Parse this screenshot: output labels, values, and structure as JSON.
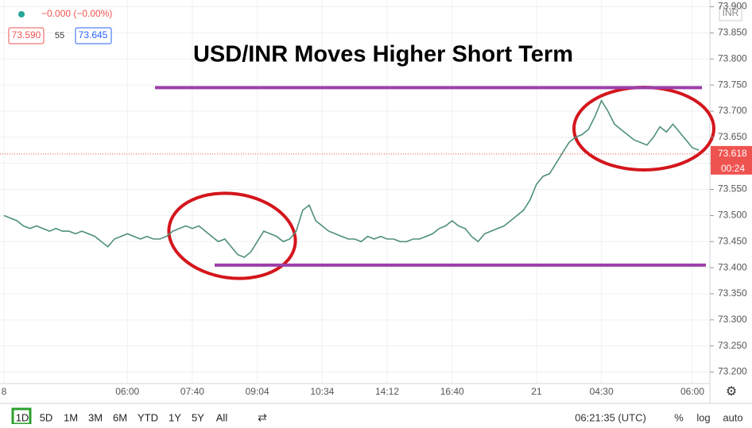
{
  "chart_data": {
    "type": "line",
    "title": "USD/INR Moves Higher  Short Term",
    "categories": [
      "8",
      null,
      null,
      null,
      null,
      null,
      null,
      null,
      null,
      null,
      null,
      null,
      null,
      null,
      null,
      null,
      null,
      null,
      null,
      "06:00",
      null,
      null,
      null,
      null,
      null,
      null,
      null,
      null,
      null,
      "07:40",
      null,
      null,
      null,
      null,
      null,
      null,
      null,
      null,
      null,
      "09:04",
      null,
      null,
      null,
      null,
      null,
      null,
      null,
      null,
      null,
      "10:34",
      null,
      null,
      null,
      null,
      null,
      null,
      null,
      null,
      null,
      "14:12",
      null,
      null,
      null,
      null,
      null,
      null,
      null,
      null,
      null,
      "16:40",
      null,
      null,
      null,
      null,
      null,
      null,
      null,
      null,
      null,
      null,
      null,
      null,
      "21",
      null,
      null,
      null,
      null,
      null,
      null,
      null,
      null,
      null,
      "04:30",
      null,
      null,
      null,
      null,
      null,
      null,
      null,
      null,
      null,
      null,
      null,
      null,
      null,
      "06:00",
      null
    ],
    "series": [
      {
        "color": "#4f8f7c",
        "values": [
          73.5,
          73.495,
          73.49,
          73.48,
          73.475,
          73.48,
          73.475,
          73.47,
          73.475,
          73.47,
          73.47,
          73.465,
          73.47,
          73.465,
          73.46,
          73.45,
          73.44,
          73.455,
          73.46,
          73.465,
          73.46,
          73.455,
          73.46,
          73.455,
          73.455,
          73.46,
          73.47,
          73.475,
          73.48,
          73.475,
          73.48,
          73.47,
          73.46,
          73.45,
          73.455,
          73.44,
          73.425,
          73.42,
          73.43,
          73.45,
          73.47,
          73.465,
          73.46,
          73.45,
          73.455,
          73.47,
          73.51,
          73.52,
          73.49,
          73.48,
          73.47,
          73.465,
          73.46,
          73.455,
          73.455,
          73.45,
          73.46,
          73.455,
          73.46,
          73.455,
          73.455,
          73.45,
          73.45,
          73.455,
          73.455,
          73.46,
          73.465,
          73.475,
          73.48,
          73.49,
          73.48,
          73.475,
          73.46,
          73.45,
          73.465,
          73.47,
          73.475,
          73.48,
          73.49,
          73.5,
          73.51,
          73.53,
          73.56,
          73.575,
          73.58,
          73.6,
          73.62,
          73.64,
          73.65,
          73.655,
          73.665,
          73.69,
          73.72,
          73.7,
          73.675,
          73.665,
          73.655,
          73.645,
          73.64,
          73.635,
          73.65,
          73.67,
          73.66,
          73.675,
          73.66,
          73.645,
          73.63,
          73.625
        ]
      }
    ],
    "ylim": [
      73.178,
      73.913
    ],
    "yticks": [
      {
        "value": 73.9,
        "label": "73.900"
      },
      {
        "value": 73.85,
        "label": "73.850"
      },
      {
        "value": 73.8,
        "label": "73.800"
      },
      {
        "value": 73.75,
        "label": "73.750"
      },
      {
        "value": 73.7,
        "label": "73.700"
      },
      {
        "value": 73.65,
        "label": "73.650"
      },
      {
        "value": 73.6,
        "label": "73.600"
      },
      {
        "value": 73.55,
        "label": "73.550"
      },
      {
        "value": 73.5,
        "label": "73.500"
      },
      {
        "value": 73.45,
        "label": "73.450"
      },
      {
        "value": 73.4,
        "label": "73.400"
      },
      {
        "value": 73.35,
        "label": "73.350"
      },
      {
        "value": 73.3,
        "label": "73.300"
      },
      {
        "value": 73.25,
        "label": "73.250"
      },
      {
        "value": 73.2,
        "label": "73.200"
      }
    ],
    "grid": true,
    "levels": [
      {
        "value": 73.745,
        "color": "#9c3fa8"
      },
      {
        "value": 73.405,
        "color": "#9c3fa8"
      }
    ],
    "price_tag": {
      "value": 73.618,
      "label": "73.618",
      "color": "#ef5350"
    },
    "countdown": "00:24",
    "currency": "INR"
  },
  "legend": {
    "change": "−0.000 (−0.00%)",
    "bid": "73.590",
    "spread": "55",
    "ask": "73.645"
  },
  "toolbar": {
    "ranges": [
      "1D",
      "5D",
      "1M",
      "3M",
      "6M",
      "YTD",
      "1Y",
      "5Y",
      "All"
    ],
    "clock": "06:21:35 (UTC)",
    "percent": "%",
    "log": "log",
    "auto": "auto"
  }
}
